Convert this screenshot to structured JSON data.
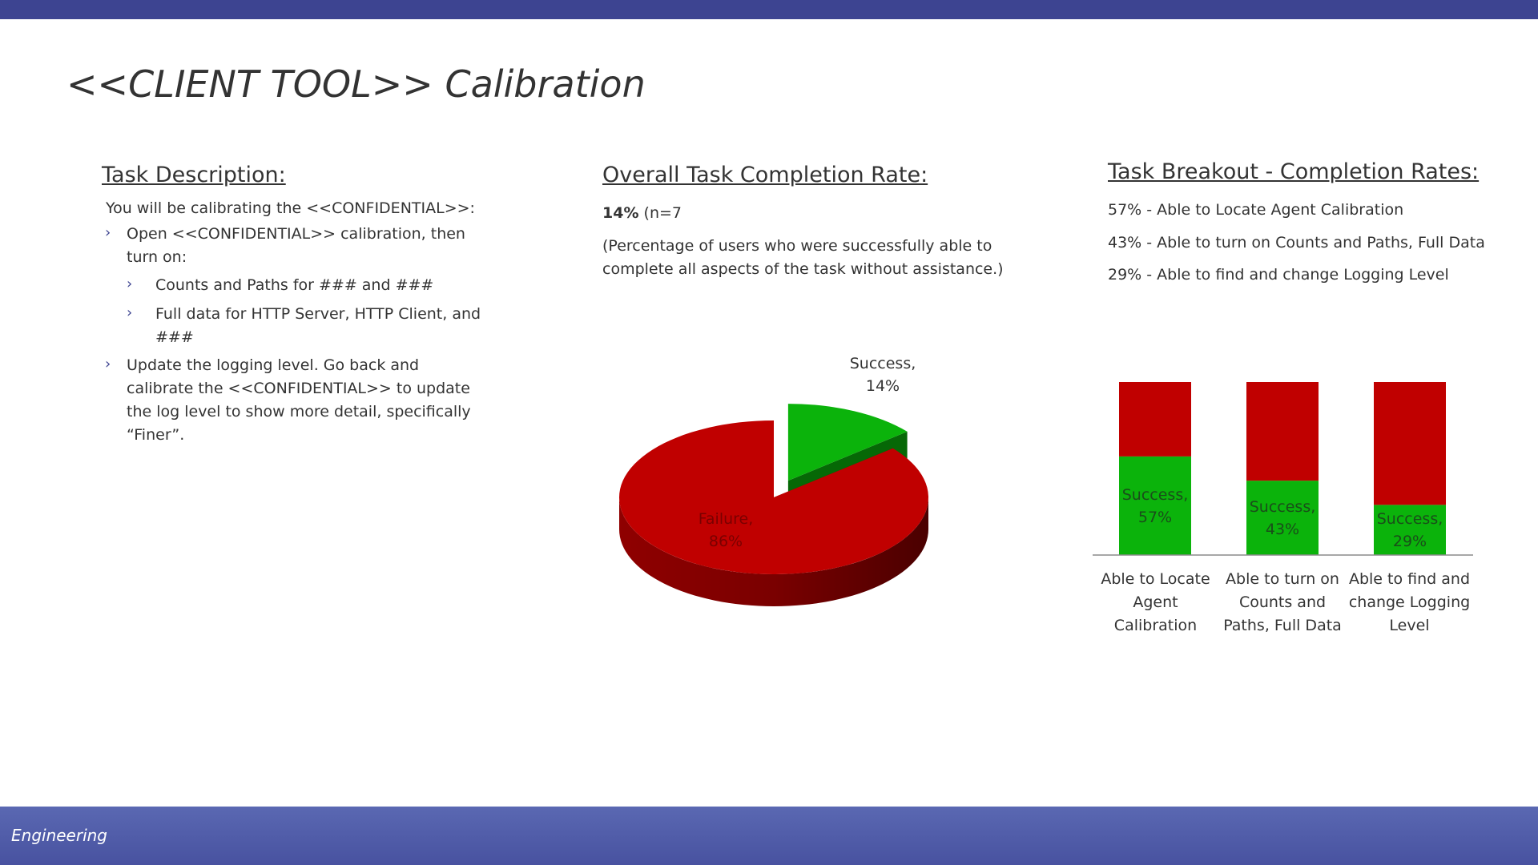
{
  "slide": {
    "title": "<<CLIENT TOOL>> Calibration",
    "footer": "Engineering"
  },
  "task_description": {
    "heading": "Task Description:",
    "intro": "You will be calibrating the <<CONFIDENTIAL>>:",
    "bullets": [
      {
        "text": "Open <<CONFIDENTIAL>> calibration, then turn on:"
      },
      {
        "text": "Counts and Paths for ### and ###"
      },
      {
        "text": "Full data for HTTP Server, HTTP Client, and ###"
      },
      {
        "text": "Update the logging level. Go back and calibrate the <<CONFIDENTIAL>> to update the log level to show more detail, specifically “Finer”."
      }
    ],
    "bullet_glyph": "›"
  },
  "overall": {
    "heading": "Overall Task Completion Rate:",
    "rate": "14%",
    "n": "(n=7",
    "note": "(Percentage of users who were successfully able to complete all aspects of the task without assistance.)"
  },
  "breakout": {
    "heading": "Task Breakout - Completion Rates:",
    "lines": [
      "57% - Able to Locate Agent Calibration",
      "43% - Able to turn on Counts and Paths, Full Data",
      "29% - Able to find and change Logging Level"
    ]
  },
  "chart_data": [
    {
      "type": "pie",
      "style": "3d exploded",
      "slices": [
        {
          "label": "Success",
          "value": 14,
          "display": "Success, 14%",
          "color": "#0bb30b"
        },
        {
          "label": "Failure",
          "value": 86,
          "display": "Failure, 86%",
          "color": "#c00000"
        }
      ]
    },
    {
      "type": "bar",
      "stacked": true,
      "categories": [
        "Able to Locate Agent Calibration",
        "Able to turn on Counts and Paths, Full Data",
        "Able to find and change Logging Level"
      ],
      "series": [
        {
          "name": "Success",
          "values": [
            57,
            43,
            29
          ],
          "color": "#0bb30b",
          "labels": [
            "Success, 57%",
            "Success, 43%",
            "Success, 29%"
          ]
        },
        {
          "name": "Failure",
          "values": [
            43,
            57,
            71
          ],
          "color": "#c00000"
        }
      ],
      "ylim": [
        0,
        100
      ],
      "grid": false,
      "legend": "none"
    }
  ]
}
